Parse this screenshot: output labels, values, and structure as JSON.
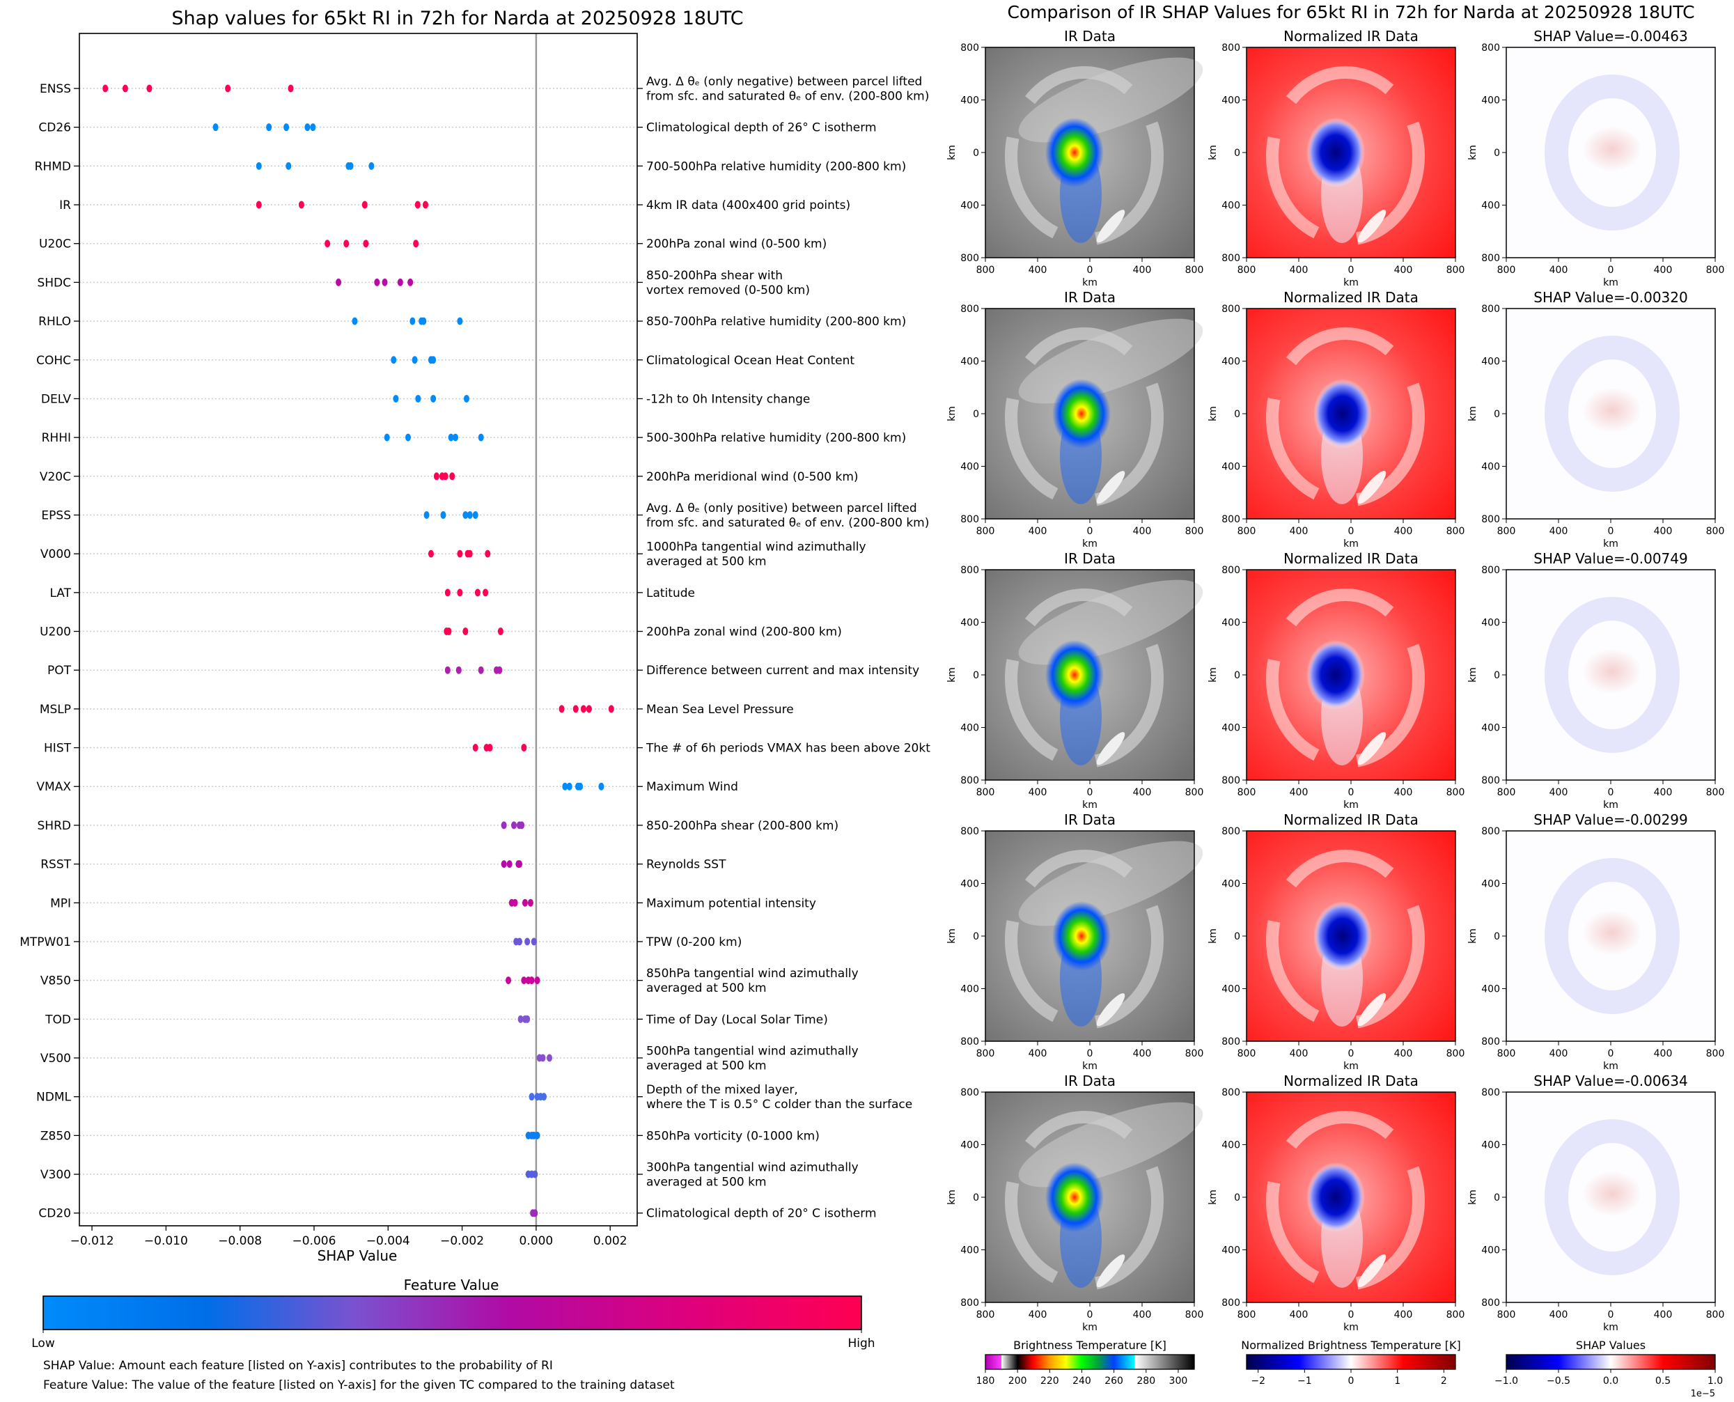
{
  "chart_data": {
    "type": "scatter",
    "title": "Shap values for 65kt RI in 72h for Narda at 20250928 18UTC",
    "xlabel": "SHAP Value",
    "xlim": [
      -0.01234,
      0.00273
    ],
    "xticks": [
      -0.012,
      -0.01,
      -0.008,
      -0.006,
      -0.004,
      -0.002,
      0.0,
      0.002
    ],
    "xtick_labels": [
      "−0.012",
      "−0.010",
      "−0.008",
      "−0.006",
      "−0.004",
      "−0.002",
      "0.000",
      "0.002"
    ],
    "zero_line": 0,
    "grid": "horizontal dotted",
    "features": [
      {
        "code": "ENSS",
        "desc": [
          "Avg. Δ θₑ (only negative) between parcel lifted",
          "from sfc. and saturated θₑ of env. (200-800 km)"
        ],
        "color": "#ff0052",
        "shap_values": [
          -0.01164,
          -0.0111,
          -0.01045,
          -0.00833,
          -0.00663
        ]
      },
      {
        "code": "CD26",
        "desc": [
          "Climatological depth of 26° C isotherm"
        ],
        "color": "#008bfb",
        "shap_values": [
          -0.00866,
          -0.00722,
          -0.00675,
          -0.00618,
          -0.00603
        ]
      },
      {
        "code": "RHMD",
        "desc": [
          "700-500hPa relative humidity (200-800 km)"
        ],
        "color": "#008bfb",
        "shap_values": [
          -0.00749,
          -0.00669,
          -0.00507,
          -0.00501,
          -0.00445
        ]
      },
      {
        "code": "IR",
        "desc": [
          "4km IR data (400x400 grid points)"
        ],
        "color": "#ff0052",
        "shap_values": [
          -0.00749,
          -0.00634,
          -0.00463,
          -0.0032,
          -0.00299
        ]
      },
      {
        "code": "U20C",
        "desc": [
          "200hPa zonal wind (0-500 km)"
        ],
        "color": "#ff0052",
        "shap_values": [
          -0.00564,
          -0.00513,
          -0.0046,
          -0.00325
        ]
      },
      {
        "code": "SHDC",
        "desc": [
          "850-200hPa shear with",
          "vortex removed (0-500 km)"
        ],
        "color": "#b80aa6",
        "shap_values": [
          -0.00534,
          -0.0043,
          -0.00409,
          -0.00367,
          -0.0034
        ]
      },
      {
        "code": "RHLO",
        "desc": [
          "850-700hPa relative humidity (200-800 km)"
        ],
        "color": "#008bfb",
        "shap_values": [
          -0.0049,
          -0.00334,
          -0.0031,
          -0.00304,
          -0.00206
        ]
      },
      {
        "code": "COHC",
        "desc": [
          "Climatological Ocean Heat Content"
        ],
        "color": "#008bfb",
        "shap_values": [
          -0.00385,
          -0.00328,
          -0.00284,
          -0.00278
        ]
      },
      {
        "code": "DELV",
        "desc": [
          "-12h to 0h Intensity change"
        ],
        "color": "#008bfb",
        "shap_values": [
          -0.00379,
          -0.00319,
          -0.00278,
          -0.00188
        ]
      },
      {
        "code": "RHHI",
        "desc": [
          "500-300hPa relative humidity (200-800 km)"
        ],
        "color": "#008bfb",
        "shap_values": [
          -0.00403,
          -0.00346,
          -0.0023,
          -0.00218,
          -0.00149
        ]
      },
      {
        "code": "V20C",
        "desc": [
          "200hPa meridional wind (0-500 km)"
        ],
        "color": "#ff0052",
        "shap_values": [
          -0.00269,
          -0.00254,
          -0.00245,
          -0.00227
        ]
      },
      {
        "code": "EPSS",
        "desc": [
          "Avg. Δ θₑ (only positive) between parcel lifted",
          "from sfc. and saturated θₑ of env. (200-800 km)"
        ],
        "color": "#008bfb",
        "shap_values": [
          -0.00296,
          -0.00251,
          -0.00191,
          -0.00179,
          -0.00164
        ]
      },
      {
        "code": "V000",
        "desc": [
          "1000hPa tangential wind azimuthally",
          "averaged at 500 km"
        ],
        "color": "#ff0052",
        "shap_values": [
          -0.00284,
          -0.00206,
          -0.00185,
          -0.00179,
          -0.00131
        ]
      },
      {
        "code": "LAT",
        "desc": [
          "Latitude"
        ],
        "color": "#ff0052",
        "shap_values": [
          -0.00239,
          -0.00206,
          -0.00158,
          -0.00137
        ]
      },
      {
        "code": "U200",
        "desc": [
          "200hPa zonal wind (200-800 km)"
        ],
        "color": "#ff0052",
        "shap_values": [
          -0.00242,
          -0.00236,
          -0.00191,
          -0.00096
        ]
      },
      {
        "code": "POT",
        "desc": [
          "Difference between current and max intensity"
        ],
        "color": "#b21cb0",
        "shap_values": [
          -0.00239,
          -0.00209,
          -0.00149,
          -0.00107,
          -0.00099
        ]
      },
      {
        "code": "MSLP",
        "desc": [
          "Mean Sea Level Pressure"
        ],
        "color": "#ff0052",
        "shap_values": [
          0.00069,
          0.00107,
          0.00128,
          0.00143,
          0.00203
        ]
      },
      {
        "code": "HIST",
        "desc": [
          "The # of 6h periods VMAX has been above 20kt"
        ],
        "color": "#ff0052",
        "shap_values": [
          -0.00164,
          -0.00134,
          -0.00125,
          -0.00033
        ]
      },
      {
        "code": "VMAX",
        "desc": [
          "Maximum Wind"
        ],
        "color": "#008bfb",
        "shap_values": [
          0.00078,
          0.0009,
          0.00113,
          0.00119,
          0.00176
        ]
      },
      {
        "code": "SHRD",
        "desc": [
          "850-200hPa shear (200-800 km)"
        ],
        "color": "#9b2fc2",
        "shap_values": [
          -0.00087,
          -0.0006,
          -0.00045,
          -0.00039
        ]
      },
      {
        "code": "RSST",
        "desc": [
          "Reynolds SST"
        ],
        "color": "#b70aa6",
        "shap_values": [
          -0.00087,
          -0.00072,
          -0.00048,
          -0.00045
        ]
      },
      {
        "code": "MPI",
        "desc": [
          "Maximum potential intensity"
        ],
        "color": "#c4089e",
        "shap_values": [
          -0.00066,
          -0.00057,
          -0.0003,
          -0.00015
        ]
      },
      {
        "code": "MTPW01",
        "desc": [
          "TPW (0-200 km)"
        ],
        "color": "#6a58d8",
        "shap_values": [
          -0.00054,
          -0.00045,
          -0.00024,
          -6e-05
        ]
      },
      {
        "code": "V850",
        "desc": [
          "850hPa tangential wind azimuthally",
          "averaged at 500 km"
        ],
        "color": "#c8049a",
        "shap_values": [
          -0.00075,
          -0.00033,
          -0.00021,
          -0.00012,
          3e-05
        ]
      },
      {
        "code": "TOD",
        "desc": [
          "Time of Day (Local Solar Time)"
        ],
        "color": "#8055d0",
        "shap_values": [
          -0.00042,
          -0.0003,
          -0.00024
        ]
      },
      {
        "code": "V500",
        "desc": [
          "500hPa tangential wind azimuthally",
          "averaged at 500 km"
        ],
        "color": "#8a4fcc",
        "shap_values": [
          9e-05,
          0.00018,
          0.00036
        ]
      },
      {
        "code": "NDML",
        "desc": [
          "Depth of the mixed layer,",
          "where the T is 0.5° C colder than the surface"
        ],
        "color": "#4a6ee8",
        "shap_values": [
          -0.00012,
          3e-05,
          0.00012,
          0.00021
        ]
      },
      {
        "code": "Z850",
        "desc": [
          "850hPa vorticity (0-1000 km)"
        ],
        "color": "#0a7ef5",
        "shap_values": [
          -0.00021,
          -0.00012,
          -6e-05,
          3e-05
        ]
      },
      {
        "code": "V300",
        "desc": [
          "300hPa tangential wind azimuthally",
          "averaged at 500 km"
        ],
        "color": "#5560e0",
        "shap_values": [
          -0.00021,
          -0.00012,
          -3e-05
        ]
      },
      {
        "code": "CD20",
        "desc": [
          "Climatological depth of 20° C isotherm"
        ],
        "color": "#9a2cb8",
        "shap_values": [
          -9e-05,
          -3e-05
        ]
      }
    ],
    "colorbar": {
      "title": "Feature Value",
      "low": "Low",
      "high": "High",
      "colors": [
        "#008bfb",
        "#006ee8",
        "#7a52d0",
        "#b10aa5",
        "#e0007a",
        "#ff0052"
      ]
    }
  },
  "notes": [
    "SHAP Value: Amount each feature [listed on Y-axis] contributes to the probability of RI",
    "Feature Value: The value of the feature [listed on Y-axis] for the given TC compared to the training dataset"
  ],
  "ir_comparison": {
    "title": "Comparison of IR SHAP Values for 65kt RI in 72h for Narda at 20250928 18UTC",
    "axis_ticks": [
      "800",
      "400",
      "0",
      "400",
      "800"
    ],
    "axis_label": "km",
    "rows": [
      {
        "ir_title": "IR Data",
        "norm_title": "Normalized IR Data",
        "shap_title": "SHAP Value=-0.00463",
        "shap_value": -0.00463
      },
      {
        "ir_title": "IR Data",
        "norm_title": "Normalized IR Data",
        "shap_title": "SHAP Value=-0.00320",
        "shap_value": -0.0032
      },
      {
        "ir_title": "IR Data",
        "norm_title": "Normalized IR Data",
        "shap_title": "SHAP Value=-0.00749",
        "shap_value": -0.00749
      },
      {
        "ir_title": "IR Data",
        "norm_title": "Normalized IR Data",
        "shap_title": "SHAP Value=-0.00299",
        "shap_value": -0.00299
      },
      {
        "ir_title": "IR Data",
        "norm_title": "Normalized IR Data",
        "shap_title": "SHAP Value=-0.00634",
        "shap_value": -0.00634
      }
    ],
    "colorbars": [
      {
        "title": "Brightness Temperature [K]",
        "range": [
          180,
          310
        ],
        "ticks": [
          180,
          200,
          220,
          240,
          260,
          280,
          300
        ],
        "tick_labels": [
          "180",
          "200",
          "220",
          "240",
          "260",
          "280",
          "300"
        ]
      },
      {
        "title": "Normalized Brightness Temperature [K]",
        "range": [
          -2.25,
          2.25
        ],
        "ticks": [
          -2,
          -1,
          0,
          1,
          2
        ],
        "tick_labels": [
          "−2",
          "−1",
          "0",
          "1",
          "2"
        ]
      },
      {
        "title": "SHAP Values",
        "range": [
          -1,
          1
        ],
        "ticks": [
          -1,
          -0.5,
          0,
          0.5,
          1
        ],
        "tick_labels": [
          "−1.0",
          "−0.5",
          "0.0",
          "0.5",
          "1.0"
        ],
        "offset_label": "1e−5"
      }
    ]
  }
}
